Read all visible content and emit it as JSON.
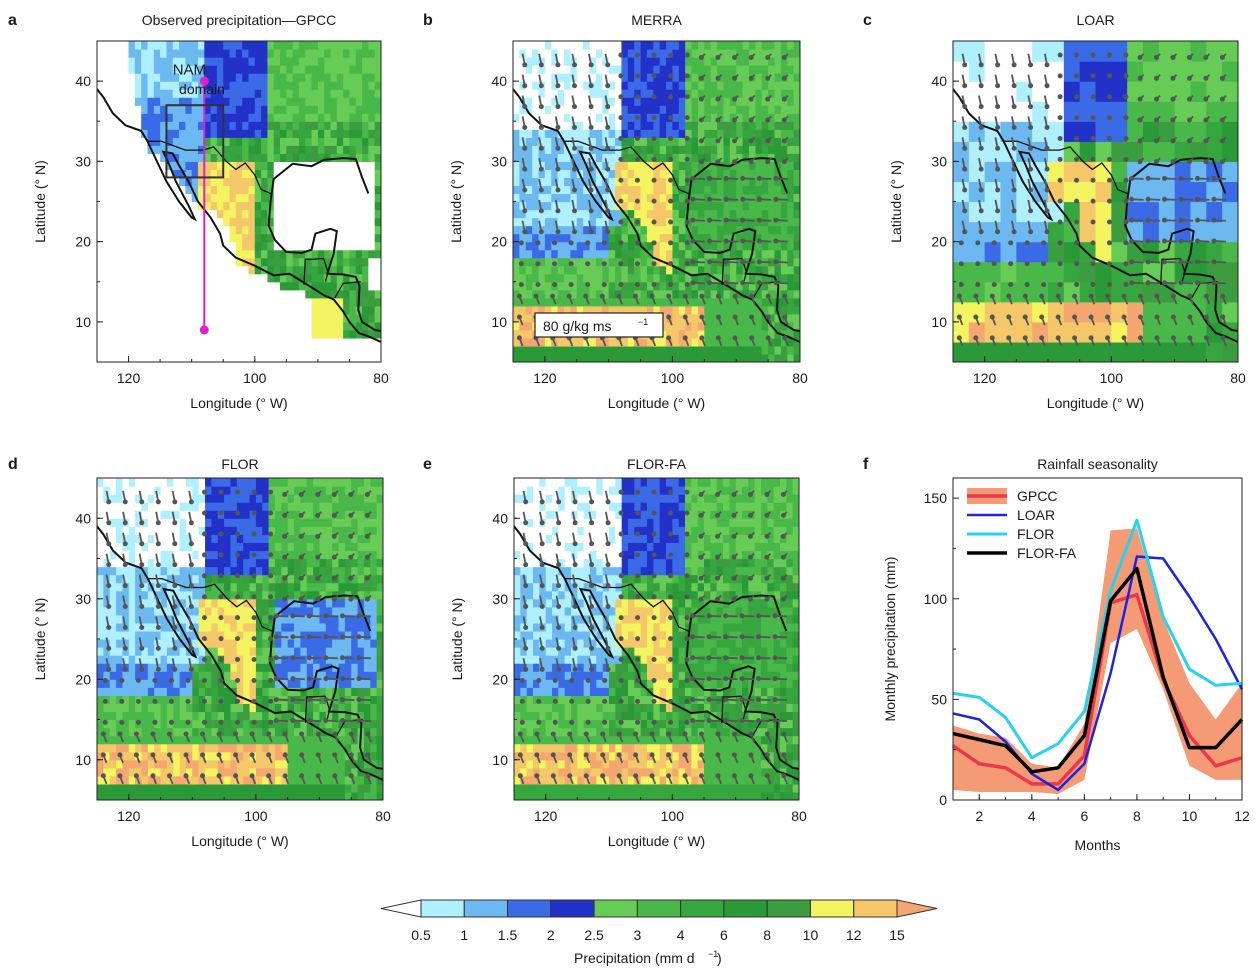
{
  "panels": [
    {
      "id": "a",
      "letter": "a",
      "title": "Observed precipitation—GPCC",
      "vectors": false,
      "annotation": {
        "line1": "NAM",
        "line2": "domain"
      }
    },
    {
      "id": "b",
      "letter": "b",
      "title": "MERRA",
      "vectors": true,
      "reference_vector": {
        "label": "80 g/kg ms",
        "exponent": "−1"
      }
    },
    {
      "id": "c",
      "letter": "c",
      "title": "LOAR",
      "vectors": true
    },
    {
      "id": "d",
      "letter": "d",
      "title": "FLOR",
      "vectors": true
    },
    {
      "id": "e",
      "letter": "e",
      "title": "FLOR-FA",
      "vectors": true
    }
  ],
  "map_axes": {
    "xlabel": "Longitude (° W)",
    "ylabel": "Latitude (° N)",
    "xlim": [
      125,
      80
    ],
    "ylim": [
      5,
      45
    ],
    "xticks": [
      {
        "v": 120,
        "t": "120"
      },
      {
        "v": 100,
        "t": "100"
      },
      {
        "v": 80,
        "t": "80"
      }
    ],
    "yticks": [
      {
        "v": 10,
        "t": "10"
      },
      {
        "v": 20,
        "t": "20"
      },
      {
        "v": 30,
        "t": "30"
      },
      {
        "v": 40,
        "t": "40"
      }
    ]
  },
  "transect": {
    "lon": 108,
    "lat_start": 9,
    "lat_end": 40,
    "color": "#e020d0"
  },
  "nam_domain_box": {
    "lon": [
      114,
      105
    ],
    "lat": [
      28,
      37
    ]
  },
  "colorbar": {
    "label": "Precipitation (mm d",
    "label_exponent": "−1",
    "label_close": ")",
    "boundaries": [
      "0.5",
      "1",
      "1.5",
      "2",
      "2.5",
      "3",
      "4",
      "6",
      "8",
      "10",
      "12",
      "15"
    ],
    "colors": [
      "#ffffff",
      "#aef0ff",
      "#6cb8f0",
      "#3a6ae6",
      "#2232c8",
      "#66cc55",
      "#48b848",
      "#36a63e",
      "#2a9a38",
      "#3c9c40",
      "#f4f460",
      "#f4c868",
      "#f4a870"
    ]
  },
  "chart_data": {
    "type": "line",
    "letter": "f",
    "title": "Rainfall seasonality",
    "xlabel": "Months",
    "ylabel": "Monthly precipitation (mm)",
    "x": [
      1,
      2,
      3,
      4,
      5,
      6,
      7,
      8,
      9,
      10,
      11,
      12
    ],
    "xlim": [
      1,
      12
    ],
    "ylim": [
      0,
      160
    ],
    "xticks": [
      2,
      4,
      6,
      8,
      10,
      12
    ],
    "yticks": [
      0,
      50,
      100,
      150
    ],
    "legend_position": "top-left",
    "gpcc_band": {
      "lower": [
        5,
        4,
        4,
        4,
        3,
        10,
        78,
        85,
        55,
        17,
        10,
        10
      ],
      "upper": [
        37,
        33,
        31,
        18,
        16,
        38,
        134,
        135,
        90,
        58,
        40,
        58
      ],
      "color": "#f49a74"
    },
    "series": [
      {
        "name": "GPCC",
        "color": "#e8384c",
        "width": 3.5,
        "values": [
          27,
          18,
          16,
          8,
          8,
          22,
          98,
          102,
          60,
          32,
          17,
          21
        ]
      },
      {
        "name": "LOAR",
        "color": "#1c24e0",
        "width": 2.5,
        "values": [
          43,
          40,
          29,
          13,
          5,
          18,
          63,
          121,
          120,
          101,
          80,
          55
        ]
      },
      {
        "name": "FLOR",
        "color": "#22d4f0",
        "width": 3,
        "values": [
          53,
          51,
          41,
          21,
          28,
          44,
          104,
          139,
          91,
          65,
          57,
          58
        ]
      },
      {
        "name": "FLOR-FA",
        "color": "#000000",
        "width": 3.5,
        "values": [
          33,
          30,
          27,
          14,
          16,
          32,
          99,
          115,
          61,
          26,
          26,
          40
        ]
      }
    ]
  }
}
